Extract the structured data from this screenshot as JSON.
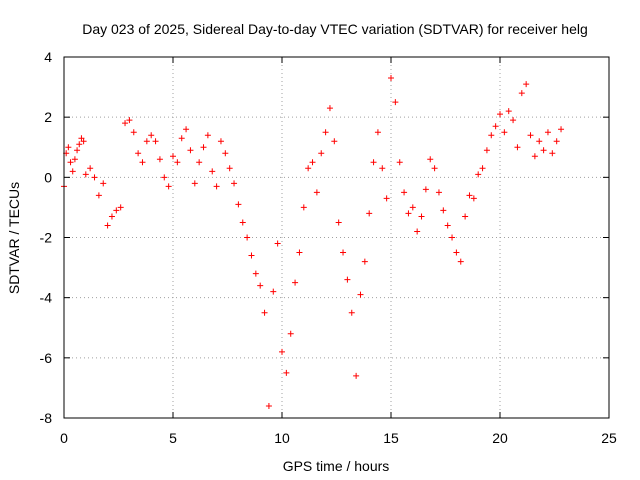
{
  "chart_data": {
    "type": "scatter",
    "title": "Day 023 of 2025, Sidereal Day-to-day VTEC variation (SDTVAR) for receiver helg",
    "xlabel": "GPS time / hours",
    "ylabel": "SDTVAR / TECUs",
    "xlim": [
      0,
      25
    ],
    "ylim": [
      -8,
      4
    ],
    "xticks": [
      0,
      5,
      10,
      15,
      20,
      25
    ],
    "yticks": [
      -8,
      -6,
      -4,
      -2,
      0,
      2,
      4
    ],
    "xtick_labels": [
      "0",
      "5",
      "10",
      "15",
      "20",
      "25"
    ],
    "ytick_labels": [
      "-8",
      "-6",
      "-4",
      "-2",
      "0",
      "2",
      "4"
    ],
    "grid": true,
    "marker": "plus",
    "color": "#ff0000",
    "series": [
      {
        "name": "SDTVAR",
        "x": [
          0.0,
          0.1,
          0.2,
          0.3,
          0.4,
          0.5,
          0.6,
          0.7,
          0.8,
          0.9,
          1.0,
          1.2,
          1.4,
          1.6,
          1.8,
          2.0,
          2.2,
          2.4,
          2.6,
          2.8,
          3.0,
          3.2,
          3.4,
          3.6,
          3.8,
          4.0,
          4.2,
          4.4,
          4.6,
          4.8,
          5.0,
          5.2,
          5.4,
          5.6,
          5.8,
          6.0,
          6.2,
          6.4,
          6.6,
          6.8,
          7.0,
          7.2,
          7.4,
          7.6,
          7.8,
          8.0,
          8.2,
          8.4,
          8.6,
          8.8,
          9.0,
          9.2,
          9.4,
          9.6,
          9.8,
          10.0,
          10.2,
          10.4,
          10.6,
          10.8,
          11.0,
          11.2,
          11.4,
          11.6,
          11.8,
          12.0,
          12.2,
          12.4,
          12.6,
          12.8,
          13.0,
          13.2,
          13.4,
          13.6,
          13.8,
          14.0,
          14.2,
          14.4,
          14.6,
          14.8,
          15.0,
          15.2,
          15.4,
          15.6,
          15.8,
          16.0,
          16.2,
          16.4,
          16.6,
          16.8,
          17.0,
          17.2,
          17.4,
          17.6,
          17.8,
          18.0,
          18.2,
          18.4,
          18.6,
          18.8,
          19.0,
          19.2,
          19.4,
          19.6,
          19.8,
          20.0,
          20.2,
          20.4,
          20.6,
          20.8,
          21.0,
          21.2,
          21.4,
          21.6,
          21.8,
          22.0,
          22.2,
          22.4,
          22.6,
          22.8
        ],
        "y": [
          -0.3,
          0.8,
          1.0,
          0.5,
          0.2,
          0.6,
          0.9,
          1.1,
          1.3,
          1.2,
          0.1,
          0.3,
          0.0,
          -0.6,
          -0.2,
          -1.6,
          -1.3,
          -1.1,
          -1.0,
          1.8,
          1.9,
          1.5,
          0.8,
          0.5,
          1.2,
          1.4,
          1.2,
          0.6,
          0.0,
          -0.3,
          0.7,
          0.5,
          1.3,
          1.6,
          0.9,
          -0.2,
          0.5,
          1.0,
          1.4,
          0.2,
          -0.3,
          1.2,
          0.8,
          0.3,
          -0.2,
          -0.9,
          -1.5,
          -2.0,
          -2.6,
          -3.2,
          -3.6,
          -4.5,
          -7.6,
          -3.8,
          -2.2,
          -5.8,
          -6.5,
          -5.2,
          -3.5,
          -2.5,
          -1.0,
          0.3,
          0.5,
          -0.5,
          0.8,
          1.5,
          2.3,
          1.2,
          -1.5,
          -2.5,
          -3.4,
          -4.5,
          -6.6,
          -3.9,
          -2.8,
          -1.2,
          0.5,
          1.5,
          0.3,
          -0.7,
          3.3,
          2.5,
          0.5,
          -0.5,
          -1.2,
          -1.0,
          -1.8,
          -1.3,
          -0.4,
          0.6,
          0.3,
          -0.5,
          -1.1,
          -1.6,
          -2.0,
          -2.5,
          -2.8,
          -1.3,
          -0.6,
          -0.7,
          0.1,
          0.3,
          0.9,
          1.4,
          1.7,
          2.1,
          1.5,
          2.2,
          1.9,
          1.0,
          2.8,
          3.1,
          1.4,
          0.7,
          1.2,
          0.9,
          1.5,
          0.8,
          1.2,
          1.6
        ]
      }
    ]
  }
}
